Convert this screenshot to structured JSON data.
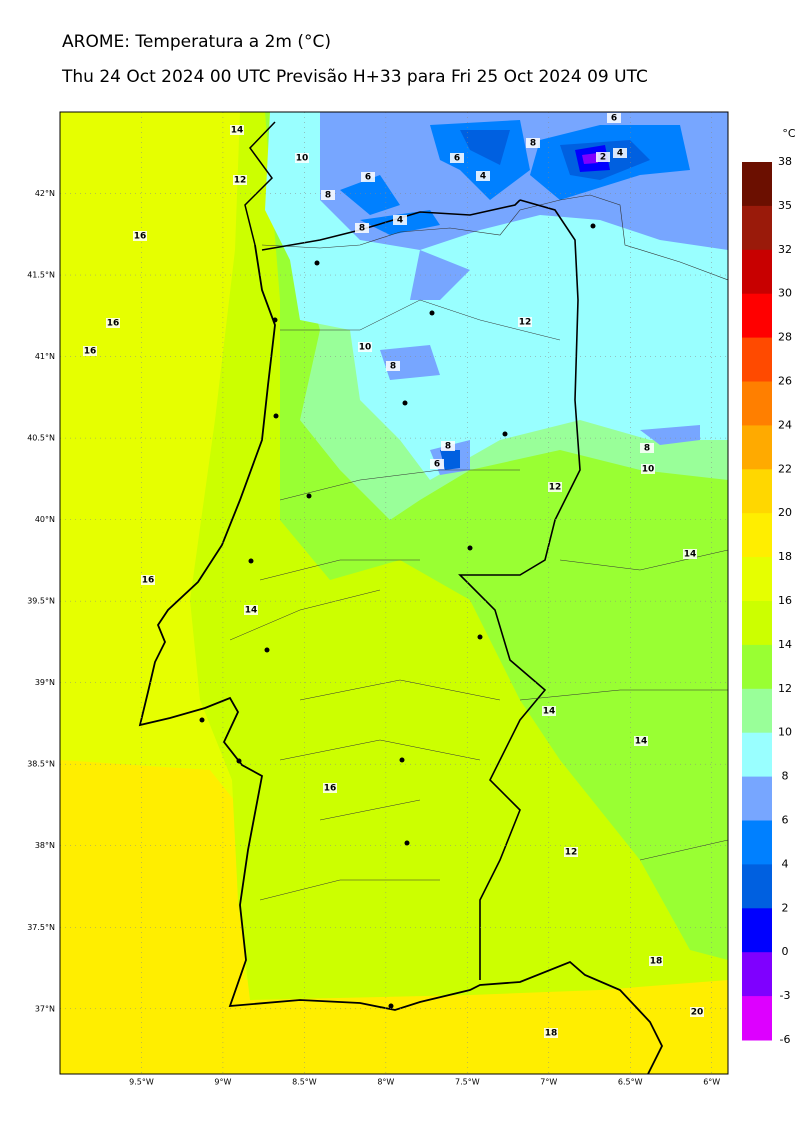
{
  "title": "AROME: Temperatura a 2m (°C)",
  "subtitle": "Thu 24 Oct 2024 00 UTC Previsão H+33 para Fri 25 Oct 2024 09 UTC",
  "map": {
    "lonlim": [
      -10.0,
      -5.9
    ],
    "latlim": [
      36.6,
      42.5
    ],
    "lat_ticks": [
      {
        "value": 42,
        "label": "42°N"
      },
      {
        "value": 41.5,
        "label": "41.5°N"
      },
      {
        "value": 41,
        "label": "41°N"
      },
      {
        "value": 40.5,
        "label": "40.5°N"
      },
      {
        "value": 40,
        "label": "40°N"
      },
      {
        "value": 39.5,
        "label": "39.5°N"
      },
      {
        "value": 39,
        "label": "39°N"
      },
      {
        "value": 38.5,
        "label": "38.5°N"
      },
      {
        "value": 38,
        "label": "38°N"
      },
      {
        "value": 37.5,
        "label": "37.5°N"
      },
      {
        "value": 37,
        "label": "37°N"
      }
    ],
    "lon_ticks": [
      {
        "value": -9.5,
        "label": "9.5°W"
      },
      {
        "value": -9,
        "label": "9°W"
      },
      {
        "value": -8.5,
        "label": "8.5°W"
      },
      {
        "value": -8,
        "label": "8°W"
      },
      {
        "value": -7.5,
        "label": "7.5°W"
      },
      {
        "value": -7,
        "label": "7°W"
      },
      {
        "value": -6.5,
        "label": "6.5°W"
      },
      {
        "value": -6,
        "label": "6°W"
      }
    ],
    "contour_labels": [
      14,
      10,
      12,
      8,
      6,
      8,
      4,
      6,
      4,
      8,
      2,
      4,
      6,
      16,
      16,
      16,
      10,
      8,
      12,
      8,
      6,
      8,
      10,
      12,
      14,
      16,
      14,
      14,
      14,
      16,
      12,
      18,
      20,
      18
    ]
  },
  "colorbar": {
    "unit": "°C",
    "levels": [
      38,
      35,
      32,
      30,
      28,
      26,
      24,
      22,
      20,
      18,
      16,
      14,
      12,
      10,
      8,
      6,
      4,
      2,
      0,
      -3,
      -6
    ],
    "colors": [
      "#6b0f00",
      "#9a1a0a",
      "#c80000",
      "#ff0000",
      "#ff4a00",
      "#ff7f00",
      "#ffaa00",
      "#ffd700",
      "#ffee00",
      "#e6ff00",
      "#ccff00",
      "#99ff33",
      "#99ff99",
      "#99ffff",
      "#77a6ff",
      "#0080ff",
      "#0060e0",
      "#0000ff",
      "#7f00ff",
      "#dd00ff"
    ]
  }
}
